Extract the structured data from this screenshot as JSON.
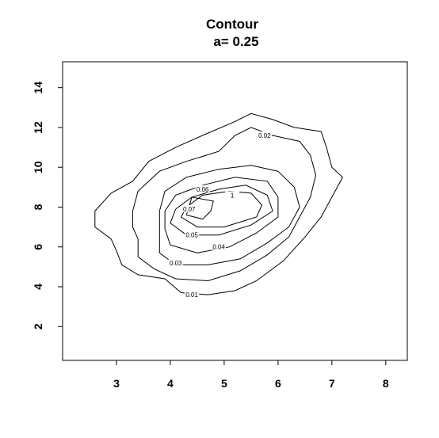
{
  "chart_data": {
    "type": "contour",
    "title": "Contour",
    "subtitle": "a= 0.25",
    "xlabel": "",
    "ylabel": "",
    "xlim": [
      2,
      8.4
    ],
    "ylim": [
      0.3,
      15.3
    ],
    "x_ticks": [
      "3",
      "4",
      "5",
      "6",
      "7",
      "8"
    ],
    "x_tick_values": [
      3,
      4,
      5,
      6,
      7,
      8
    ],
    "y_ticks": [
      "2",
      "4",
      "6",
      "8",
      "10",
      "12",
      "14"
    ],
    "y_tick_values": [
      2,
      4,
      6,
      8,
      10,
      12,
      14
    ],
    "grid": false,
    "levels": [
      {
        "label": "0.01",
        "label_at": [
          4.4,
          3.6
        ],
        "points": [
          [
            2.6,
            7.8
          ],
          [
            2.9,
            8.7
          ],
          [
            3.3,
            9.3
          ],
          [
            3.6,
            10.3
          ],
          [
            4.1,
            11.0
          ],
          [
            4.6,
            11.6
          ],
          [
            5.2,
            12.3
          ],
          [
            5.5,
            12.7
          ],
          [
            5.9,
            12.4
          ],
          [
            6.3,
            12.0
          ],
          [
            6.8,
            11.8
          ],
          [
            6.9,
            11.0
          ],
          [
            7.0,
            10.0
          ],
          [
            7.2,
            9.5
          ],
          [
            7.0,
            8.5
          ],
          [
            6.8,
            7.5
          ],
          [
            6.5,
            6.5
          ],
          [
            6.1,
            5.3
          ],
          [
            5.6,
            4.3
          ],
          [
            5.2,
            3.8
          ],
          [
            4.7,
            3.6
          ],
          [
            4.2,
            3.7
          ],
          [
            3.9,
            4.4
          ],
          [
            3.4,
            4.6
          ],
          [
            3.1,
            5.1
          ],
          [
            3.0,
            5.8
          ],
          [
            2.9,
            6.4
          ],
          [
            2.6,
            7.0
          ],
          [
            2.6,
            7.8
          ]
        ]
      },
      {
        "label": "0.02",
        "label_at": [
          5.75,
          11.6
        ],
        "points": [
          [
            3.3,
            7.8
          ],
          [
            3.4,
            8.8
          ],
          [
            3.8,
            9.8
          ],
          [
            4.3,
            10.3
          ],
          [
            4.9,
            10.8
          ],
          [
            5.2,
            11.6
          ],
          [
            5.5,
            12.0
          ],
          [
            5.9,
            11.6
          ],
          [
            6.4,
            11.3
          ],
          [
            6.6,
            10.6
          ],
          [
            6.7,
            9.6
          ],
          [
            6.6,
            8.5
          ],
          [
            6.4,
            7.5
          ],
          [
            6.2,
            6.5
          ],
          [
            5.8,
            5.6
          ],
          [
            5.3,
            4.8
          ],
          [
            4.7,
            4.3
          ],
          [
            4.1,
            4.4
          ],
          [
            3.7,
            4.9
          ],
          [
            3.4,
            5.5
          ],
          [
            3.4,
            6.4
          ],
          [
            3.3,
            7.0
          ],
          [
            3.3,
            7.8
          ]
        ]
      },
      {
        "label": "0.03",
        "label_at": [
          4.1,
          5.2
        ],
        "points": [
          [
            3.8,
            7.8
          ],
          [
            3.9,
            8.8
          ],
          [
            4.3,
            9.5
          ],
          [
            4.9,
            9.9
          ],
          [
            5.5,
            10.1
          ],
          [
            6.0,
            9.8
          ],
          [
            6.3,
            9.0
          ],
          [
            6.4,
            8.0
          ],
          [
            6.2,
            7.0
          ],
          [
            5.8,
            6.2
          ],
          [
            5.3,
            5.4
          ],
          [
            4.7,
            5.1
          ],
          [
            4.1,
            5.1
          ],
          [
            3.8,
            5.7
          ],
          [
            3.8,
            6.6
          ],
          [
            3.8,
            7.8
          ]
        ]
      },
      {
        "label": "0.04",
        "label_at": [
          4.9,
          6.0
        ],
        "points": [
          [
            3.9,
            7.8
          ],
          [
            4.1,
            8.6
          ],
          [
            4.6,
            9.1
          ],
          [
            5.2,
            9.5
          ],
          [
            5.8,
            9.3
          ],
          [
            6.0,
            8.5
          ],
          [
            6.0,
            7.5
          ],
          [
            5.6,
            6.7
          ],
          [
            5.1,
            6.0
          ],
          [
            4.5,
            5.7
          ],
          [
            4.0,
            6.1
          ],
          [
            3.9,
            6.9
          ],
          [
            3.9,
            7.8
          ]
        ]
      },
      {
        "label": "0.05",
        "label_at": [
          4.4,
          6.6
        ],
        "points": [
          [
            4.1,
            7.9
          ],
          [
            4.4,
            8.5
          ],
          [
            4.9,
            8.9
          ],
          [
            5.4,
            9.1
          ],
          [
            5.8,
            8.6
          ],
          [
            5.9,
            7.8
          ],
          [
            5.5,
            7.1
          ],
          [
            4.9,
            6.6
          ],
          [
            4.3,
            6.6
          ],
          [
            4.0,
            7.2
          ],
          [
            4.1,
            7.9
          ]
        ]
      },
      {
        "label": "0.06",
        "label_at": [
          4.6,
          8.9
        ],
        "points": [
          [
            4.3,
            8.0
          ],
          [
            4.6,
            8.6
          ],
          [
            5.1,
            8.8
          ],
          [
            5.5,
            8.7
          ],
          [
            5.7,
            8.1
          ],
          [
            5.6,
            7.5
          ],
          [
            5.0,
            7.0
          ],
          [
            4.5,
            7.0
          ],
          [
            4.2,
            7.5
          ],
          [
            4.3,
            8.0
          ]
        ]
      },
      {
        "label": "0.07",
        "label_at": [
          4.35,
          7.9
        ],
        "points": [
          [
            4.3,
            7.6
          ],
          [
            4.4,
            8.5
          ],
          [
            4.8,
            8.3
          ],
          [
            4.75,
            7.8
          ],
          [
            4.6,
            7.4
          ],
          [
            4.3,
            7.6
          ]
        ]
      },
      {
        "label": "1",
        "label_at": [
          5.15,
          8.6
        ],
        "points": []
      }
    ]
  }
}
